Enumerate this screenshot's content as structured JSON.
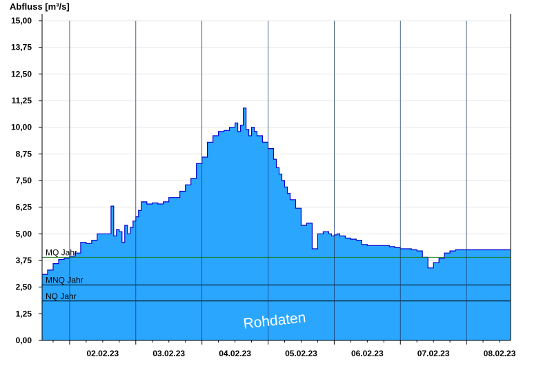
{
  "chart_data": {
    "type": "area",
    "ylabel": "Abfluss [m³/s]",
    "ylim": [
      0,
      15
    ],
    "yticks": [
      "0,00",
      "1,25",
      "2,50",
      "3,75",
      "5,00",
      "6,25",
      "7,50",
      "8,75",
      "10,00",
      "11,25",
      "12,50",
      "13,75",
      "15,00"
    ],
    "xlim": [
      "01.02.23 14:00",
      "08.02.23 12:00"
    ],
    "xticks": [
      "02.02.23",
      "03.02.23",
      "04.02.23",
      "05.02.23",
      "06.02.23",
      "07.02.23",
      "08.02.23"
    ],
    "grid": true,
    "watermark": "Rohdaten",
    "reference_lines": [
      {
        "label": "MQ Jahr",
        "value": 3.9,
        "color": "#1a7a1a"
      },
      {
        "label": "MNQ Jahr",
        "value": 2.6,
        "color": "#000000"
      },
      {
        "label": "NQ Jahr",
        "value": 1.85,
        "color": "#000000"
      }
    ],
    "series": [
      {
        "color": "#2aa6ff",
        "line_color": "#0000cc",
        "x_hours": [
          0,
          2,
          4,
          6,
          8,
          10,
          12,
          14,
          16,
          18,
          20,
          22,
          24,
          25,
          26,
          27,
          28,
          29,
          30,
          31,
          32,
          33,
          34,
          35,
          36,
          38,
          40,
          42,
          44,
          46,
          48,
          50,
          52,
          54,
          56,
          58,
          60,
          62,
          64,
          66,
          68,
          70,
          71,
          72,
          73,
          74,
          75,
          76,
          77,
          78,
          80,
          82,
          84,
          85,
          86,
          87,
          88,
          89,
          90,
          92,
          94,
          96,
          98,
          100,
          102,
          104,
          105,
          106,
          107,
          108,
          110,
          112,
          114,
          116,
          118,
          120,
          122,
          124,
          126,
          128,
          130,
          132,
          134,
          136,
          138,
          140,
          142,
          144,
          146,
          148,
          150,
          152,
          154,
          156,
          158,
          160,
          162,
          164,
          166,
          167,
          168,
          169,
          170
        ],
        "y": [
          3.1,
          3.3,
          3.6,
          3.8,
          3.85,
          3.95,
          4.1,
          4.6,
          4.55,
          4.7,
          5.0,
          5.0,
          5.0,
          6.3,
          4.9,
          5.2,
          5.1,
          4.6,
          5.4,
          5.0,
          5.3,
          5.6,
          5.8,
          6.1,
          6.5,
          6.4,
          6.45,
          6.4,
          6.5,
          6.7,
          6.7,
          7.0,
          7.3,
          7.6,
          8.3,
          8.6,
          9.3,
          9.6,
          9.8,
          9.85,
          10.0,
          10.2,
          9.8,
          10.1,
          10.9,
          9.9,
          9.6,
          10.0,
          9.8,
          9.6,
          9.3,
          9.0,
          8.5,
          8.1,
          7.8,
          7.5,
          7.2,
          6.9,
          6.6,
          6.2,
          5.4,
          5.5,
          4.3,
          5.0,
          5.1,
          5.0,
          4.9,
          4.95,
          5.0,
          4.9,
          4.8,
          4.75,
          4.7,
          4.5,
          4.45,
          4.45,
          4.45,
          4.45,
          4.4,
          4.35,
          4.3,
          4.3,
          4.25,
          4.2,
          3.9,
          3.4,
          3.65,
          3.85,
          4.1,
          4.2,
          4.25,
          4.25,
          4.25,
          4.25,
          4.25,
          4.25,
          4.25,
          4.25,
          4.25,
          4.25,
          4.25,
          4.25,
          4.25
        ]
      }
    ]
  }
}
